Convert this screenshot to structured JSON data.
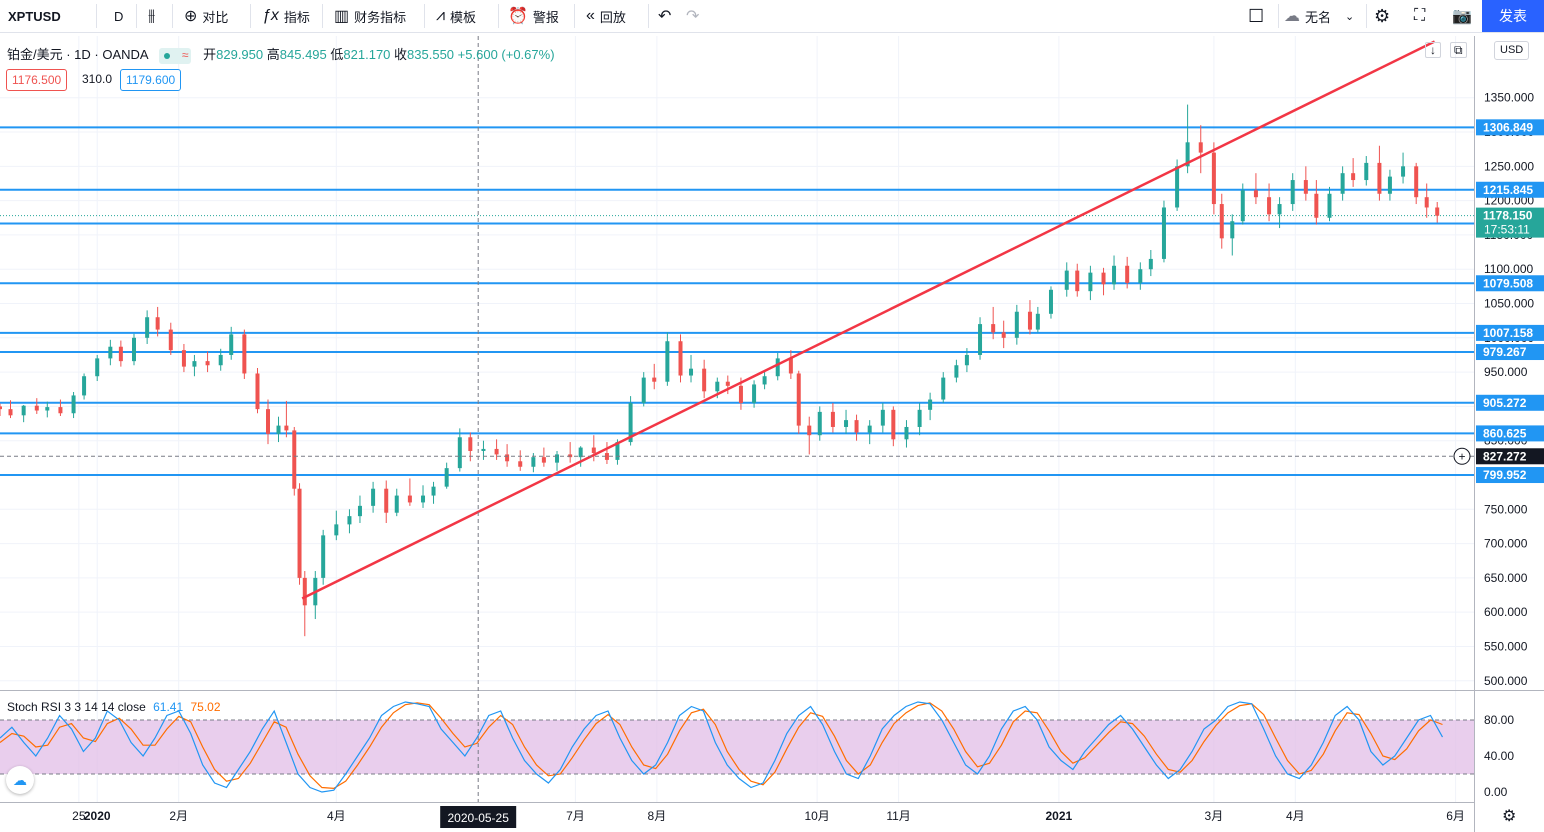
{
  "toolbar": {
    "symbol": "XPTUSD",
    "interval": "D",
    "compare": "对比",
    "indicators": "指标",
    "financials": "财务指标",
    "templates": "模板",
    "alerts": "警报",
    "replay": "回放",
    "layout_name": "无名",
    "publish": "发表"
  },
  "legend": {
    "title": "铂金/美元 · 1D · OANDA",
    "open_label": "开",
    "open": "829.950",
    "high_label": "高",
    "high": "845.495",
    "low_label": "低",
    "low": "821.170",
    "close_label": "收",
    "close": "835.550",
    "change": "+5.600 (+0.67%)",
    "bid": "1176.500",
    "spread": "310.0",
    "ask": "1179.600"
  },
  "currency_badge": "USD",
  "colors": {
    "up": "#26a69a",
    "down": "#ef5350",
    "hline": "#2196f3",
    "trend": "#f23645",
    "k": "#2196f3",
    "d": "#ff6d00",
    "band": "#e1bee7"
  },
  "chart_data": {
    "type": "candlestick",
    "symbol": "XPTUSD",
    "interval": "1D",
    "y_ticks": [
      1350,
      1300,
      1250,
      1200,
      1150,
      1100,
      1050,
      1000,
      950,
      900,
      850,
      800,
      750,
      700,
      650,
      600,
      550,
      500
    ],
    "y_tick_labels": [
      "1350.000",
      "1300.000",
      "1250.000",
      "1200.000",
      "1150.000",
      "1100.000",
      "1050.000",
      "1000.000",
      "950.000",
      "900.000",
      "850.000",
      "800.000",
      "750.000",
      "700.000",
      "650.000",
      "600.000",
      "550.000",
      "500.000"
    ],
    "ylim": [
      488,
      1440
    ],
    "x_labels": [
      {
        "label": "25",
        "date": "2019-12-25"
      },
      {
        "label": "2020",
        "date": "2020-01-01"
      },
      {
        "label": "2月",
        "date": "2020-02-01"
      },
      {
        "label": "4月",
        "date": "2020-04-01"
      },
      {
        "label": "7月",
        "date": "2020-07-01"
      },
      {
        "label": "8月",
        "date": "2020-08-01"
      },
      {
        "label": "10月",
        "date": "2020-10-01"
      },
      {
        "label": "11月",
        "date": "2020-11-01"
      },
      {
        "label": "2021",
        "date": "2021-01-01"
      },
      {
        "label": "3月",
        "date": "2021-03-01"
      },
      {
        "label": "4月",
        "date": "2021-04-01"
      },
      {
        "label": "6月",
        "date": "2021-06-01"
      }
    ],
    "xlim": [
      "2019-11-25",
      "2021-06-08"
    ],
    "crosshair": {
      "date": "2020-05-25",
      "label": "2020-05-25",
      "price": 827.272,
      "price_label": "827.272"
    },
    "horizontal_lines": [
      {
        "price": 1306.849,
        "label": "1306.849"
      },
      {
        "price": 1215.845,
        "label": "1215.845"
      },
      {
        "price": 1166.731,
        "label": "1166.731"
      },
      {
        "price": 1079.508,
        "label": "1079.508"
      },
      {
        "price": 1007.158,
        "label": "1007.158"
      },
      {
        "price": 979.267,
        "label": "979.267"
      },
      {
        "price": 905.272,
        "label": "905.272"
      },
      {
        "price": 860.625,
        "label": "860.625"
      },
      {
        "price": 799.952,
        "label": "799.952"
      }
    ],
    "last_price": {
      "value": 1178.15,
      "label": "1178.150",
      "countdown": "17:53:11"
    },
    "trendline": [
      {
        "date": "2020-03-19",
        "price": 620
      },
      {
        "date": "2021-05-24",
        "price": 1432
      }
    ],
    "candles": [
      [
        "2019-11-25",
        900,
        904,
        886,
        896
      ],
      [
        "2019-11-29",
        896,
        909,
        883,
        887
      ],
      [
        "2019-12-04",
        887,
        902,
        877,
        901
      ],
      [
        "2019-12-09",
        901,
        912,
        889,
        894
      ],
      [
        "2019-12-13",
        894,
        907,
        884,
        899
      ],
      [
        "2019-12-18",
        899,
        910,
        886,
        890
      ],
      [
        "2019-12-23",
        890,
        921,
        883,
        916
      ],
      [
        "2019-12-27",
        916,
        948,
        910,
        944
      ],
      [
        "2020-01-01",
        944,
        975,
        937,
        970
      ],
      [
        "2020-01-06",
        970,
        997,
        960,
        987
      ],
      [
        "2020-01-10",
        987,
        996,
        958,
        966
      ],
      [
        "2020-01-15",
        966,
        1006,
        960,
        1000
      ],
      [
        "2020-01-20",
        1000,
        1040,
        991,
        1030
      ],
      [
        "2020-01-24",
        1030,
        1045,
        1002,
        1012
      ],
      [
        "2020-01-29",
        1012,
        1022,
        975,
        982
      ],
      [
        "2020-02-03",
        982,
        991,
        950,
        958
      ],
      [
        "2020-02-07",
        958,
        975,
        944,
        966
      ],
      [
        "2020-02-12",
        966,
        980,
        950,
        960
      ],
      [
        "2020-02-17",
        960,
        984,
        952,
        975
      ],
      [
        "2020-02-21",
        975,
        1016,
        968,
        1005
      ],
      [
        "2020-02-26",
        1005,
        1012,
        940,
        948
      ],
      [
        "2020-03-02",
        948,
        956,
        890,
        896
      ],
      [
        "2020-03-06",
        896,
        910,
        845,
        860
      ],
      [
        "2020-03-10",
        860,
        885,
        848,
        872
      ],
      [
        "2020-03-13",
        872,
        908,
        855,
        865
      ],
      [
        "2020-03-16",
        865,
        870,
        770,
        780
      ],
      [
        "2020-03-18",
        780,
        788,
        640,
        650
      ],
      [
        "2020-03-20",
        650,
        660,
        565,
        610
      ],
      [
        "2020-03-24",
        610,
        660,
        590,
        650
      ],
      [
        "2020-03-27",
        650,
        720,
        640,
        712
      ],
      [
        "2020-04-01",
        712,
        748,
        705,
        728
      ],
      [
        "2020-04-06",
        728,
        750,
        715,
        740
      ],
      [
        "2020-04-10",
        740,
        770,
        730,
        755
      ],
      [
        "2020-04-15",
        755,
        790,
        745,
        780
      ],
      [
        "2020-04-20",
        780,
        792,
        730,
        745
      ],
      [
        "2020-04-24",
        745,
        780,
        740,
        770
      ],
      [
        "2020-04-29",
        770,
        795,
        755,
        760
      ],
      [
        "2020-05-04",
        760,
        785,
        752,
        770
      ],
      [
        "2020-05-08",
        770,
        790,
        758,
        783
      ],
      [
        "2020-05-13",
        783,
        818,
        780,
        810
      ],
      [
        "2020-05-18",
        810,
        868,
        805,
        855
      ],
      [
        "2020-05-22",
        855,
        862,
        820,
        835
      ],
      [
        "2020-05-27",
        835,
        850,
        822,
        838
      ],
      [
        "2020-06-01",
        838,
        852,
        822,
        830
      ],
      [
        "2020-06-05",
        830,
        845,
        812,
        820
      ],
      [
        "2020-06-10",
        820,
        836,
        806,
        812
      ],
      [
        "2020-06-15",
        812,
        832,
        804,
        826
      ],
      [
        "2020-06-19",
        826,
        840,
        812,
        818
      ],
      [
        "2020-06-24",
        818,
        835,
        806,
        830
      ],
      [
        "2020-06-29",
        830,
        848,
        818,
        826
      ],
      [
        "2020-07-03",
        826,
        842,
        812,
        840
      ],
      [
        "2020-07-08",
        840,
        858,
        820,
        832
      ],
      [
        "2020-07-13",
        832,
        848,
        816,
        822
      ],
      [
        "2020-07-17",
        822,
        852,
        815,
        848
      ],
      [
        "2020-07-22",
        848,
        915,
        843,
        905
      ],
      [
        "2020-07-27",
        905,
        950,
        900,
        942
      ],
      [
        "2020-07-31",
        942,
        962,
        925,
        936
      ],
      [
        "2020-08-05",
        936,
        1008,
        930,
        995
      ],
      [
        "2020-08-10",
        995,
        1005,
        935,
        945
      ],
      [
        "2020-08-14",
        945,
        975,
        935,
        955
      ],
      [
        "2020-08-19",
        955,
        968,
        912,
        922
      ],
      [
        "2020-08-24",
        922,
        942,
        912,
        936
      ],
      [
        "2020-08-28",
        936,
        945,
        918,
        930
      ],
      [
        "2020-09-02",
        930,
        942,
        895,
        905
      ],
      [
        "2020-09-07",
        905,
        938,
        898,
        932
      ],
      [
        "2020-09-11",
        932,
        952,
        925,
        944
      ],
      [
        "2020-09-16",
        944,
        978,
        938,
        970
      ],
      [
        "2020-09-21",
        970,
        982,
        940,
        948
      ],
      [
        "2020-09-24",
        948,
        952,
        860,
        872
      ],
      [
        "2020-09-28",
        872,
        885,
        830,
        858
      ],
      [
        "2020-10-02",
        858,
        900,
        850,
        892
      ],
      [
        "2020-10-07",
        892,
        905,
        862,
        870
      ],
      [
        "2020-10-12",
        870,
        895,
        860,
        880
      ],
      [
        "2020-10-16",
        880,
        888,
        850,
        862
      ],
      [
        "2020-10-21",
        862,
        880,
        845,
        872
      ],
      [
        "2020-10-26",
        872,
        905,
        862,
        895
      ],
      [
        "2020-10-30",
        895,
        900,
        842,
        852
      ],
      [
        "2020-11-04",
        852,
        880,
        840,
        870
      ],
      [
        "2020-11-09",
        870,
        905,
        858,
        895
      ],
      [
        "2020-11-13",
        895,
        920,
        880,
        910
      ],
      [
        "2020-11-18",
        910,
        950,
        905,
        942
      ],
      [
        "2020-11-23",
        942,
        968,
        935,
        960
      ],
      [
        "2020-11-27",
        960,
        985,
        950,
        975
      ],
      [
        "2020-12-02",
        975,
        1030,
        968,
        1020
      ],
      [
        "2020-12-07",
        1020,
        1045,
        998,
        1008
      ],
      [
        "2020-12-11",
        1008,
        1025,
        985,
        1000
      ],
      [
        "2020-12-16",
        1000,
        1048,
        990,
        1038
      ],
      [
        "2020-12-21",
        1038,
        1055,
        1005,
        1012
      ],
      [
        "2020-12-24",
        1012,
        1045,
        1008,
        1035
      ],
      [
        "2020-12-29",
        1035,
        1075,
        1028,
        1070
      ],
      [
        "2021-01-04",
        1070,
        1110,
        1060,
        1098
      ],
      [
        "2021-01-08",
        1098,
        1108,
        1060,
        1068
      ],
      [
        "2021-01-13",
        1068,
        1105,
        1055,
        1095
      ],
      [
        "2021-01-18",
        1095,
        1102,
        1062,
        1078
      ],
      [
        "2021-01-22",
        1078,
        1120,
        1070,
        1105
      ],
      [
        "2021-01-27",
        1105,
        1118,
        1072,
        1080
      ],
      [
        "2021-02-01",
        1080,
        1110,
        1070,
        1100
      ],
      [
        "2021-02-05",
        1100,
        1128,
        1090,
        1115
      ],
      [
        "2021-02-10",
        1115,
        1200,
        1110,
        1190
      ],
      [
        "2021-02-15",
        1190,
        1260,
        1185,
        1250
      ],
      [
        "2021-02-19",
        1250,
        1340,
        1240,
        1285
      ],
      [
        "2021-02-24",
        1285,
        1310,
        1240,
        1270
      ],
      [
        "2021-03-01",
        1270,
        1285,
        1180,
        1195
      ],
      [
        "2021-03-04",
        1195,
        1210,
        1130,
        1145
      ],
      [
        "2021-03-08",
        1145,
        1180,
        1120,
        1170
      ],
      [
        "2021-03-12",
        1170,
        1225,
        1165,
        1215
      ],
      [
        "2021-03-17",
        1215,
        1240,
        1195,
        1205
      ],
      [
        "2021-03-22",
        1205,
        1225,
        1170,
        1180
      ],
      [
        "2021-03-26",
        1180,
        1205,
        1160,
        1195
      ],
      [
        "2021-03-31",
        1195,
        1240,
        1185,
        1230
      ],
      [
        "2021-04-05",
        1230,
        1250,
        1200,
        1210
      ],
      [
        "2021-04-09",
        1210,
        1230,
        1165,
        1175
      ],
      [
        "2021-04-14",
        1175,
        1220,
        1170,
        1210
      ],
      [
        "2021-04-19",
        1210,
        1250,
        1200,
        1240
      ],
      [
        "2021-04-23",
        1240,
        1262,
        1220,
        1230
      ],
      [
        "2021-04-28",
        1230,
        1265,
        1222,
        1255
      ],
      [
        "2021-05-03",
        1255,
        1280,
        1200,
        1210
      ],
      [
        "2021-05-07",
        1210,
        1245,
        1200,
        1235
      ],
      [
        "2021-05-12",
        1235,
        1270,
        1225,
        1250
      ],
      [
        "2021-05-17",
        1250,
        1255,
        1195,
        1205
      ],
      [
        "2021-05-21",
        1205,
        1225,
        1175,
        1190
      ],
      [
        "2021-05-25",
        1190,
        1198,
        1168,
        1178
      ]
    ],
    "stoch_rsi": {
      "name": "Stoch RSI",
      "params": "3 3 14 14 close",
      "k_value": "61.41",
      "d_value": "75.02",
      "ylim": [
        0,
        100
      ],
      "y_ticks": [
        80,
        40,
        0
      ],
      "y_tick_labels": [
        "80.00",
        "40.00",
        "0.00"
      ],
      "band": [
        20,
        80
      ],
      "k": [
        60,
        72,
        55,
        40,
        60,
        85,
        70,
        45,
        60,
        90,
        80,
        55,
        40,
        60,
        85,
        90,
        65,
        30,
        10,
        5,
        25,
        45,
        70,
        90,
        55,
        20,
        5,
        0,
        2,
        20,
        40,
        60,
        85,
        95,
        100,
        98,
        95,
        70,
        55,
        40,
        60,
        85,
        90,
        60,
        35,
        20,
        10,
        25,
        50,
        70,
        85,
        90,
        60,
        35,
        20,
        30,
        55,
        85,
        95,
        90,
        55,
        30,
        15,
        5,
        10,
        35,
        65,
        85,
        95,
        75,
        45,
        20,
        15,
        40,
        70,
        85,
        95,
        100,
        98,
        80,
        55,
        30,
        20,
        40,
        70,
        90,
        95,
        80,
        50,
        35,
        25,
        45,
        60,
        75,
        85,
        70,
        50,
        30,
        15,
        25,
        45,
        70,
        80,
        95,
        100,
        98,
        70,
        40,
        20,
        15,
        30,
        55,
        85,
        95,
        80,
        45,
        30,
        40,
        60,
        80,
        85,
        61
      ],
      "d": [
        55,
        65,
        62,
        50,
        52,
        72,
        76,
        60,
        56,
        76,
        82,
        70,
        52,
        52,
        70,
        84,
        78,
        50,
        25,
        12,
        15,
        32,
        55,
        78,
        72,
        42,
        18,
        5,
        4,
        12,
        30,
        50,
        72,
        88,
        97,
        99,
        97,
        82,
        65,
        50,
        54,
        72,
        85,
        75,
        50,
        30,
        18,
        20,
        38,
        58,
        76,
        86,
        75,
        50,
        30,
        26,
        42,
        68,
        88,
        92,
        75,
        45,
        25,
        12,
        8,
        22,
        48,
        72,
        88,
        84,
        62,
        35,
        20,
        30,
        55,
        76,
        88,
        96,
        99,
        90,
        70,
        45,
        28,
        32,
        52,
        78,
        90,
        88,
        68,
        45,
        32,
        38,
        52,
        66,
        78,
        76,
        62,
        42,
        25,
        22,
        35,
        56,
        74,
        88,
        96,
        98,
        86,
        60,
        35,
        20,
        24,
        42,
        68,
        88,
        86,
        65,
        40,
        36,
        48,
        68,
        80,
        75
      ]
    }
  }
}
